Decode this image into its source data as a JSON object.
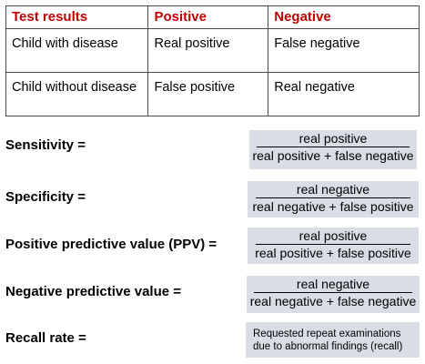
{
  "table": {
    "headers": [
      "Test results",
      "Positive",
      "Negative"
    ],
    "rows": [
      [
        "Child with disease",
        "Real positive",
        "False negative"
      ],
      [
        "Child without disease",
        "False positive",
        "Real negative"
      ]
    ]
  },
  "metrics": {
    "sensitivity": {
      "label": "Sensitivity =",
      "numerator": "real positive",
      "denominator": "real positive + false negative"
    },
    "specificity": {
      "label": "Specificity =",
      "numerator": "real negative",
      "denominator": "real negative + false positive"
    },
    "ppv": {
      "label": "Positive predictive value (PPV) =",
      "numerator": "real positive",
      "denominator": "real positive + false positive"
    },
    "npv": {
      "label": "Negative predictive value =",
      "numerator": "real negative",
      "denominator": "real negative + false negative"
    },
    "recall": {
      "label": "Recall rate =",
      "line1": "Requested repeat examinations",
      "line2": "due to abnormal findings (recall)"
    }
  },
  "colors": {
    "header_text": "#c00000",
    "box_fill": "#d9dde6"
  }
}
